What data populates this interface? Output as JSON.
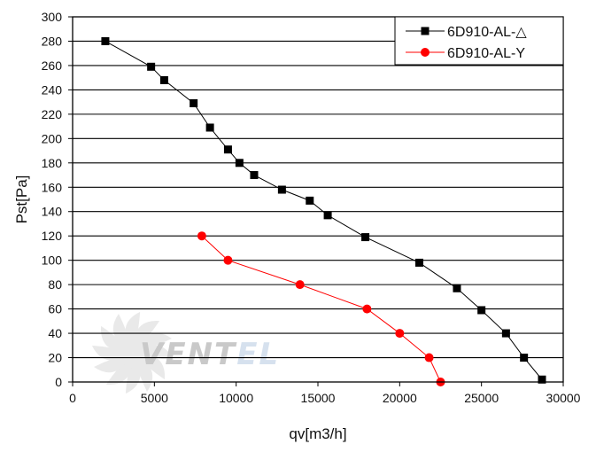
{
  "chart_data": {
    "type": "line",
    "xlabel": "qv[m3/h]",
    "ylabel": "Pst[Pa]",
    "xlim": [
      0,
      30000
    ],
    "ylim": [
      0,
      300
    ],
    "x_ticks": [
      0,
      5000,
      10000,
      15000,
      20000,
      25000,
      30000
    ],
    "y_ticks": [
      0,
      20,
      40,
      60,
      80,
      100,
      120,
      140,
      160,
      180,
      200,
      220,
      240,
      260,
      280,
      300
    ],
    "grid": "horizontal",
    "legend_position": "top-right",
    "series": [
      {
        "name": "6D910-AL-△",
        "color": "#000000",
        "marker": "square",
        "points": [
          [
            2000,
            280
          ],
          [
            4800,
            259
          ],
          [
            5600,
            248
          ],
          [
            7400,
            229
          ],
          [
            8400,
            209
          ],
          [
            9500,
            191
          ],
          [
            10200,
            180
          ],
          [
            11100,
            170
          ],
          [
            12800,
            158
          ],
          [
            14500,
            149
          ],
          [
            15600,
            137
          ],
          [
            17900,
            119
          ],
          [
            21200,
            98
          ],
          [
            23500,
            77
          ],
          [
            25000,
            59
          ],
          [
            26500,
            40
          ],
          [
            27600,
            20
          ],
          [
            28700,
            2
          ]
        ]
      },
      {
        "name": "6D910-AL-Y",
        "color": "#ff0000",
        "marker": "circle",
        "points": [
          [
            7900,
            120
          ],
          [
            9500,
            100
          ],
          [
            13900,
            80
          ],
          [
            18000,
            60
          ],
          [
            20000,
            40
          ],
          [
            21800,
            20
          ],
          [
            22500,
            0
          ]
        ]
      }
    ]
  },
  "watermark": {
    "text_dark": "VENT",
    "text_light": "EL",
    "dark_color": "#c9c9c9",
    "light_color": "#d6e1ee"
  }
}
